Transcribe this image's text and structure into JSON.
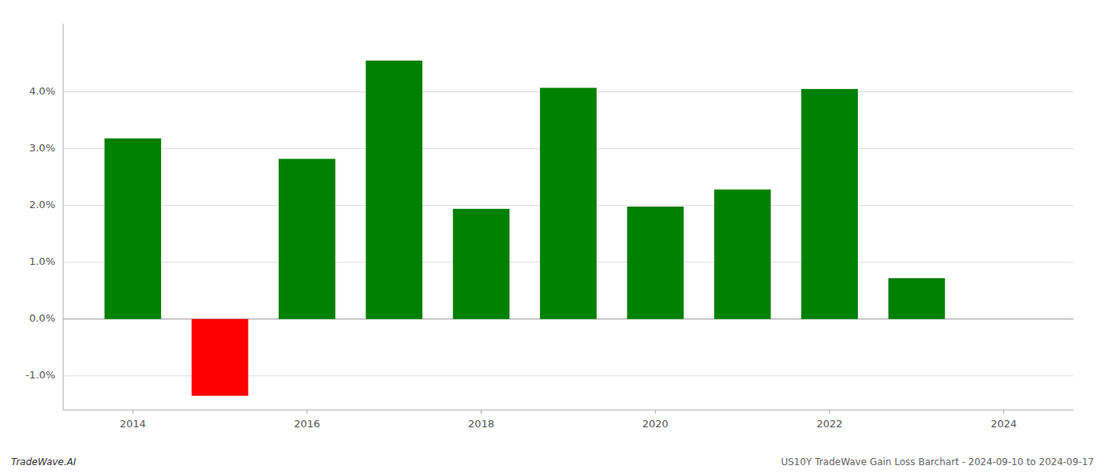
{
  "chart_data": {
    "type": "bar",
    "x": [
      2014,
      2015,
      2016,
      2017,
      2018,
      2019,
      2020,
      2021,
      2022,
      2023
    ],
    "values": [
      0.0318,
      -0.0135,
      0.0282,
      0.0455,
      0.0194,
      0.0407,
      0.0198,
      0.0228,
      0.0405,
      0.0072
    ],
    "colors": [
      "#008000",
      "#ff0000",
      "#008000",
      "#008000",
      "#008000",
      "#008000",
      "#008000",
      "#008000",
      "#008000",
      "#008000"
    ],
    "xlim": [
      2013.2,
      2024.8
    ],
    "xticks": [
      2014,
      2016,
      2018,
      2020,
      2022,
      2024
    ],
    "ylim": [
      -0.016,
      0.052
    ],
    "yticks": [
      {
        "value": -0.01,
        "label": "-1.0%"
      },
      {
        "value": 0.0,
        "label": "0.0%"
      },
      {
        "value": 0.01,
        "label": "1.0%"
      },
      {
        "value": 0.02,
        "label": "2.0%"
      },
      {
        "value": 0.03,
        "label": "3.0%"
      },
      {
        "value": 0.04,
        "label": "4.0%"
      }
    ],
    "grid": true,
    "annotations": [
      "TradeWave.AI",
      "US10Y TradeWave Gain Loss Barchart - 2024-09-10 to 2024-09-17"
    ]
  }
}
